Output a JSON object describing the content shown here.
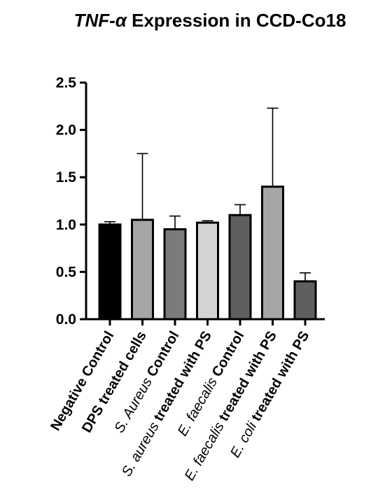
{
  "chart_data": {
    "type": "bar",
    "title": {
      "italic_part": "TNF-α",
      "rest": " Expression in CCD-Co18"
    },
    "xlabel": "",
    "ylabel": "",
    "ylim": [
      0,
      2.5
    ],
    "yticks": [
      "0.0",
      "0.5",
      "1.0",
      "1.5",
      "2.0",
      "2.5"
    ],
    "categories": [
      "Negative Control",
      "DPS treated cells",
      "S. Aureus Control",
      "S. aureus treated with PS",
      "E. faecalis Control",
      "E. faecalis treated with PS",
      "E. coli treated with PS"
    ],
    "category_label_parts": [
      [
        {
          "text": "Negative Control",
          "style": "bold"
        }
      ],
      [
        {
          "text": "DPS treated cells",
          "style": "bold"
        }
      ],
      [
        {
          "text": "S. Aureus",
          "style": "italic"
        },
        {
          "text": " Control",
          "style": "bold"
        }
      ],
      [
        {
          "text": "S. aureus",
          "style": "italic"
        },
        {
          "text": " treated with PS",
          "style": "bold"
        }
      ],
      [
        {
          "text": "E. faecalis",
          "style": "italic"
        },
        {
          "text": " Control",
          "style": "bold"
        }
      ],
      [
        {
          "text": "E. faecalis",
          "style": "italic"
        },
        {
          "text": " treated with PS",
          "style": "bold"
        }
      ],
      [
        {
          "text": "E. coli",
          "style": "italic"
        },
        {
          "text": " treated with PS",
          "style": "bold"
        }
      ]
    ],
    "values": [
      1.0,
      1.05,
      0.95,
      1.02,
      1.1,
      1.4,
      0.4
    ],
    "error_upper": [
      1.03,
      1.75,
      1.09,
      1.04,
      1.21,
      2.23,
      0.49
    ],
    "bar_colors": [
      "#000000",
      "#a6a6a8",
      "#7b7b7d",
      "#d4d4d4",
      "#5f5f61",
      "#a6a6a8",
      "#5f5f61"
    ],
    "grid": false,
    "legend": "none"
  }
}
